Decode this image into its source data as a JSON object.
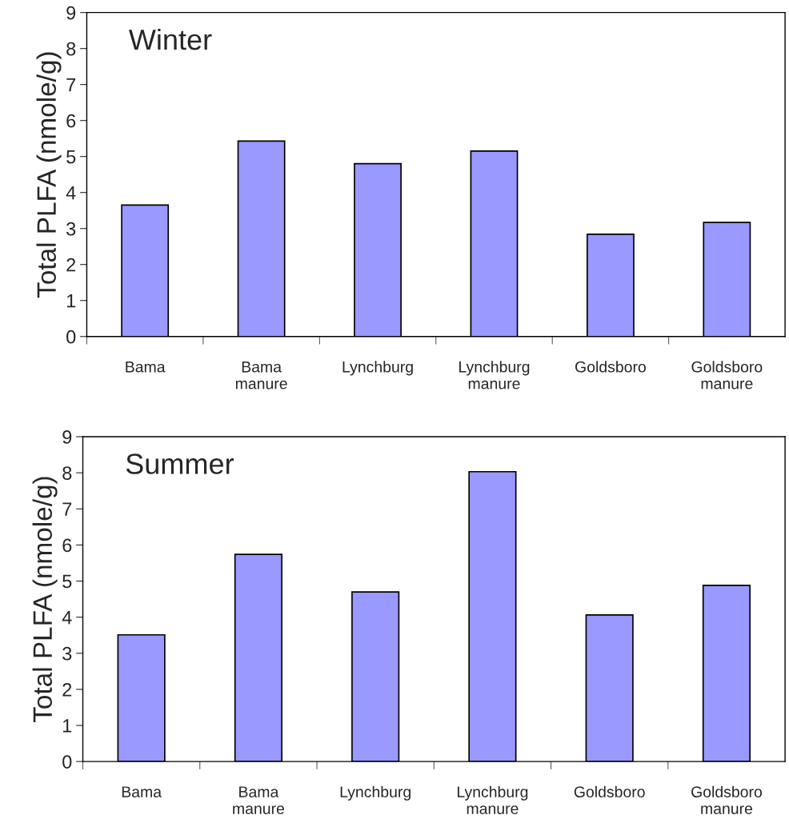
{
  "chart_data": [
    {
      "type": "bar",
      "categories": [
        "Bama",
        "Bama\nmanure",
        "Lynchburg",
        "Lynchburg\nmanure",
        "Goldsboro",
        "Goldsboro\nmanure"
      ],
      "values": [
        3.65,
        5.43,
        4.8,
        5.15,
        2.84,
        3.17
      ],
      "color": "#9999ff",
      "ylabel": "Total PLFA (nmole/g)",
      "ylim": [
        0,
        9
      ],
      "yticks": [
        0,
        1,
        2,
        3,
        4,
        5,
        6,
        7,
        8,
        9
      ],
      "grid": false,
      "annotations": [
        "Winter"
      ]
    },
    {
      "type": "bar",
      "categories": [
        "Bama",
        "Bama\nmanure",
        "Lynchburg",
        "Lynchburg\nmanure",
        "Goldsboro",
        "Goldsboro\nmanure"
      ],
      "values": [
        3.51,
        5.74,
        4.7,
        8.03,
        4.06,
        4.88
      ],
      "color": "#9999ff",
      "ylabel": "Total PLFA (nmole/g)",
      "ylim": [
        0,
        9
      ],
      "yticks": [
        0,
        1,
        2,
        3,
        4,
        5,
        6,
        7,
        8,
        9
      ],
      "grid": false,
      "annotations": [
        "Summer"
      ]
    }
  ]
}
